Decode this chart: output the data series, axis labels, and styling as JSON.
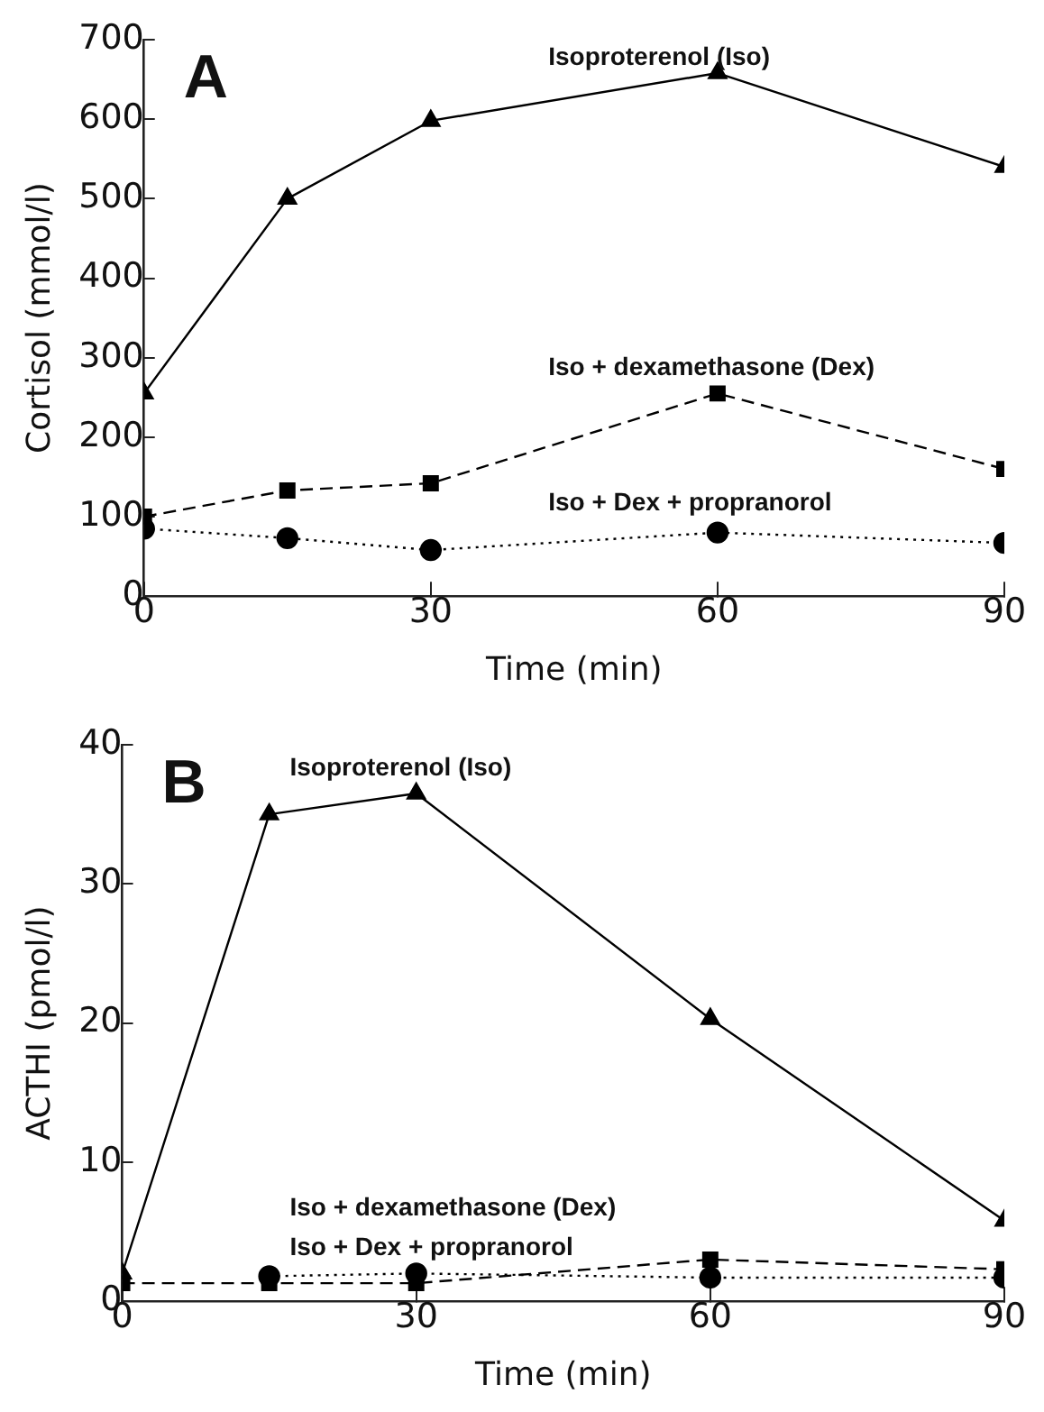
{
  "chart_data": [
    {
      "type": "line",
      "xlabel": "Time (min)",
      "ylabel": "Cortisol (mmol/l)",
      "annotations": [
        "A"
      ],
      "x": [
        0,
        15,
        30,
        60,
        90
      ],
      "xlim": [
        0,
        90
      ],
      "xticks": [
        0,
        30,
        60,
        90
      ],
      "ylim": [
        0,
        700
      ],
      "yticks": [
        0,
        100,
        200,
        300,
        400,
        500,
        600,
        700
      ],
      "grid": false,
      "legend": false,
      "series": [
        {
          "name": "Isoproterenol (Iso)",
          "color": "#000000",
          "marker": "triangle",
          "line_style": "solid",
          "values": [
            255,
            500,
            598,
            658,
            540
          ]
        },
        {
          "name": "Iso + dexamethasone (Dex)",
          "color": "#000000",
          "marker": "square",
          "line_style": "dashed",
          "values": [
            100,
            133,
            142,
            255,
            160
          ]
        },
        {
          "name": "Iso + Dex + propranorol",
          "color": "#000000",
          "marker": "circle",
          "line_style": "dotted",
          "values": [
            85,
            73,
            58,
            80,
            67
          ]
        }
      ]
    },
    {
      "type": "line",
      "xlabel": "Time (min)",
      "ylabel": "ACTHI (pmol/l)",
      "annotations": [
        "B"
      ],
      "x": [
        0,
        15,
        30,
        60,
        90
      ],
      "xlim": [
        0,
        90
      ],
      "xticks": [
        0,
        30,
        60,
        90
      ],
      "ylim": [
        0,
        40
      ],
      "yticks": [
        0,
        10,
        20,
        30,
        40
      ],
      "grid": false,
      "legend": false,
      "series": [
        {
          "name": "Isoproterenol (Iso)",
          "color": "#000000",
          "marker": "triangle",
          "line_style": "solid",
          "values": [
            2,
            35,
            36.5,
            20.3,
            5.8
          ]
        },
        {
          "name": "Iso + dexamethasone (Dex)",
          "color": "#000000",
          "marker": "square",
          "line_style": "dashed",
          "values": [
            1.3,
            1.3,
            1.3,
            3.0,
            2.3
          ]
        },
        {
          "name": "Iso + Dex + propranorol",
          "color": "#000000",
          "marker": "circle",
          "line_style": "dotted",
          "values": [
            null,
            1.8,
            2.0,
            1.7,
            1.7
          ]
        }
      ]
    }
  ]
}
